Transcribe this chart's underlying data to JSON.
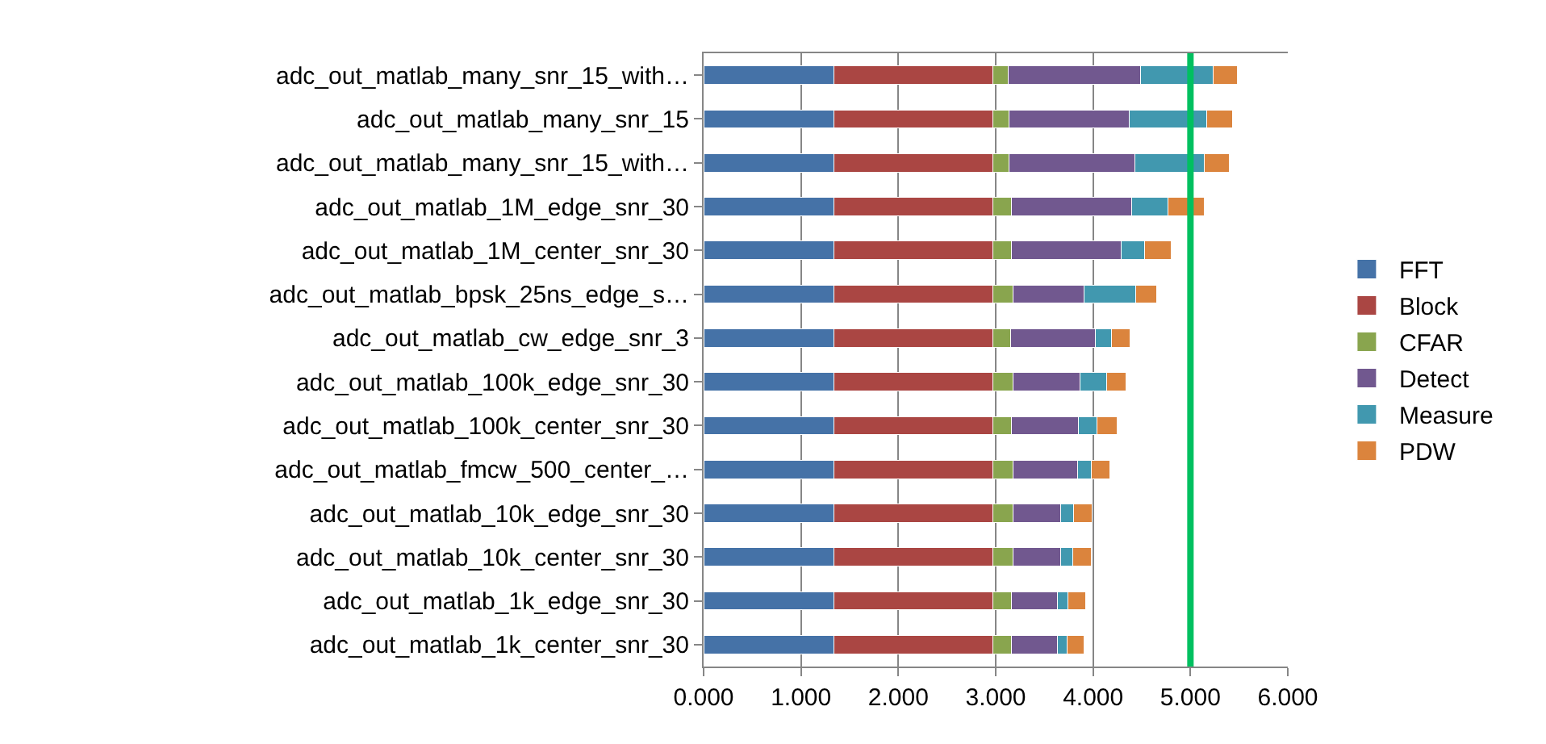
{
  "chart_data": {
    "type": "bar",
    "orientation": "horizontal",
    "stacked": true,
    "categories": [
      "adc_out_matlab_many_snr_15_with…",
      "adc_out_matlab_many_snr_15",
      "adc_out_matlab_many_snr_15_with…",
      "adc_out_matlab_1M_edge_snr_30",
      "adc_out_matlab_1M_center_snr_30",
      "adc_out_matlab_bpsk_25ns_edge_s…",
      "adc_out_matlab_cw_edge_snr_3",
      "adc_out_matlab_100k_edge_snr_30",
      "adc_out_matlab_100k_center_snr_30",
      "adc_out_matlab_fmcw_500_center_…",
      "adc_out_matlab_10k_edge_snr_30",
      "adc_out_matlab_10k_center_snr_30",
      "adc_out_matlab_1k_edge_snr_30",
      "adc_out_matlab_1k_center_snr_30"
    ],
    "series": [
      {
        "name": "FFT",
        "color": "#4572a7",
        "values": [
          1.34,
          1.34,
          1.34,
          1.34,
          1.34,
          1.34,
          1.34,
          1.34,
          1.34,
          1.34,
          1.34,
          1.34,
          1.34,
          1.34
        ]
      },
      {
        "name": "Block",
        "color": "#aa4643",
        "values": [
          1.63,
          1.63,
          1.63,
          1.63,
          1.63,
          1.63,
          1.63,
          1.63,
          1.63,
          1.63,
          1.63,
          1.63,
          1.63,
          1.63
        ]
      },
      {
        "name": "CFAR",
        "color": "#89a54e",
        "values": [
          0.16,
          0.17,
          0.17,
          0.19,
          0.19,
          0.21,
          0.18,
          0.21,
          0.19,
          0.21,
          0.21,
          0.21,
          0.19,
          0.19
        ]
      },
      {
        "name": "Detect",
        "color": "#71588f",
        "values": [
          1.36,
          1.23,
          1.29,
          1.24,
          1.13,
          0.73,
          0.87,
          0.69,
          0.69,
          0.66,
          0.49,
          0.49,
          0.47,
          0.47
        ]
      },
      {
        "name": "Measure",
        "color": "#4198af",
        "values": [
          0.74,
          0.8,
          0.71,
          0.37,
          0.24,
          0.53,
          0.17,
          0.27,
          0.19,
          0.14,
          0.13,
          0.12,
          0.11,
          0.1
        ]
      },
      {
        "name": "PDW",
        "color": "#db843d",
        "values": [
          0.25,
          0.26,
          0.26,
          0.37,
          0.27,
          0.21,
          0.19,
          0.2,
          0.21,
          0.19,
          0.19,
          0.19,
          0.18,
          0.18
        ]
      }
    ],
    "xlim": [
      0,
      6
    ],
    "xticks": [
      {
        "value": 0,
        "label": "0.000"
      },
      {
        "value": 1,
        "label": "1.000"
      },
      {
        "value": 2,
        "label": "2.000"
      },
      {
        "value": 3,
        "label": "3.000"
      },
      {
        "value": 4,
        "label": "4.000"
      },
      {
        "value": 5,
        "label": "5.000"
      },
      {
        "value": 6,
        "label": "6.000"
      }
    ],
    "ref_lines": [
      {
        "axis": "x",
        "value": 5,
        "label": null,
        "color": "#00c060"
      }
    ],
    "grid": "x",
    "legend": "right"
  }
}
